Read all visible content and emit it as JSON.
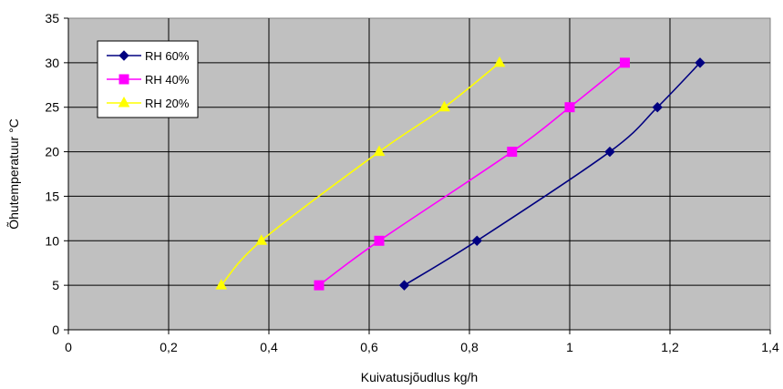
{
  "chart_data": {
    "type": "line",
    "title": "",
    "xlabel": "Kuivatusjõudlus kg/h",
    "ylabel": "Õhutemperatuur °C",
    "xlim": [
      0,
      1.4
    ],
    "ylim": [
      0,
      35
    ],
    "x_ticks": [
      "0",
      "0,2",
      "0,4",
      "0,6",
      "0,8",
      "1",
      "1,2",
      "1,4"
    ],
    "y_ticks": [
      "0",
      "5",
      "10",
      "15",
      "20",
      "25",
      "30",
      "35"
    ],
    "grid": true,
    "plot_background": "#c0c0c0",
    "legend_position": "top-left",
    "series": [
      {
        "name": "RH 60%",
        "color": "#000080",
        "marker": "diamond",
        "points": [
          {
            "x": 0.67,
            "y": 5
          },
          {
            "x": 0.815,
            "y": 10
          },
          {
            "x": 1.08,
            "y": 20
          },
          {
            "x": 1.175,
            "y": 25
          },
          {
            "x": 1.26,
            "y": 30
          }
        ]
      },
      {
        "name": "RH 40%",
        "color": "#ff00ff",
        "marker": "square",
        "points": [
          {
            "x": 0.5,
            "y": 5
          },
          {
            "x": 0.62,
            "y": 10
          },
          {
            "x": 0.885,
            "y": 20
          },
          {
            "x": 1.0,
            "y": 25
          },
          {
            "x": 1.11,
            "y": 30
          }
        ]
      },
      {
        "name": "RH 20%",
        "color": "#ffff00",
        "marker": "triangle",
        "points": [
          {
            "x": 0.305,
            "y": 5
          },
          {
            "x": 0.385,
            "y": 10
          },
          {
            "x": 0.62,
            "y": 20
          },
          {
            "x": 0.75,
            "y": 25
          },
          {
            "x": 0.86,
            "y": 30
          }
        ]
      }
    ]
  }
}
